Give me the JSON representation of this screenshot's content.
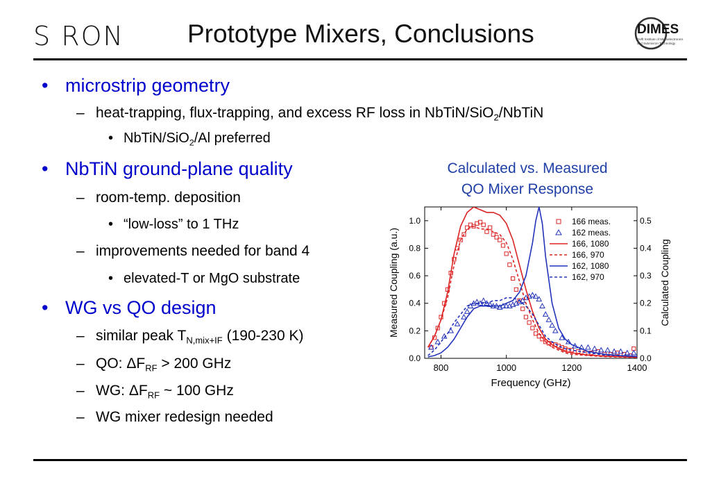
{
  "header": {
    "logo_left_text": "S  RON",
    "title": "Prototype Mixers, Conclusions",
    "logo_right": {
      "mark": "DIMES",
      "sub1": "Delft Institute of Microelectronics",
      "sub2": "and Submicron Technology"
    }
  },
  "bullets": {
    "b1": "microstrip geometry",
    "b1_s1_a": "heat-trapping, flux-trapping, and excess RF loss in NbTiN/SiO",
    "b1_s1_sub": "2",
    "b1_s1_b": "/NbTiN",
    "b1_s1_t1_a": "NbTiN/SiO",
    "b1_s1_t1_sub": "2",
    "b1_s1_t1_b": "/Al preferred",
    "b2": "NbTiN ground-plane quality",
    "b2_s1": "room-temp. deposition",
    "b2_s1_t1": "“low-loss” to 1 THz",
    "b2_s2": "improvements needed for band 4",
    "b2_s2_t1": "elevated-T or MgO substrate",
    "b3": "WG vs QO design",
    "b3_s1_a": "similar peak T",
    "b3_s1_sub": "N,mix+IF",
    "b3_s1_b": " (190-230 K)",
    "b3_s2_a": "QO:  ΔF",
    "b3_s2_sub": "RF",
    "b3_s2_b": " > 200 GHz",
    "b3_s3_a": "WG:  ΔF",
    "b3_s3_sub": "RF",
    "b3_s3_b": " ~ 100 GHz",
    "b3_s4": "WG mixer redesign needed"
  },
  "chart_title_line1": "Calculated vs. Measured",
  "chart_title_line2": "QO Mixer Response",
  "colors": {
    "bullet_blue": "#0000cc",
    "red": "#dd2222",
    "blue": "#2233bb",
    "chart_title": "#1f3fa6"
  },
  "chart_data": {
    "type": "line",
    "xlabel": "Frequency (GHz)",
    "ylabel": "Measured Coupling (a.u.)",
    "y2label": "Calculated Coupling",
    "xlim": [
      750,
      1400
    ],
    "ylim": [
      0,
      1.1
    ],
    "y2lim": [
      0,
      0.55
    ],
    "xticks": [
      800,
      1000,
      1200,
      1400
    ],
    "yticks": [
      0.0,
      0.2,
      0.4,
      0.6,
      0.8,
      1.0
    ],
    "y2ticks": [
      0.0,
      0.1,
      0.2,
      0.3,
      0.4,
      0.5
    ],
    "legend_position": "top-right",
    "series": [
      {
        "name": "166 meas.",
        "kind": "scatter",
        "marker": "square",
        "color": "#dd2222",
        "x": [
          770,
          780,
          790,
          800,
          810,
          820,
          830,
          840,
          850,
          860,
          870,
          880,
          890,
          900,
          910,
          920,
          930,
          940,
          950,
          960,
          970,
          980,
          990,
          1000,
          1010,
          1020,
          1030,
          1040,
          1050,
          1060,
          1070,
          1080,
          1090,
          1100,
          1110,
          1120,
          1130,
          1140,
          1150,
          1160,
          1170,
          1180,
          1190,
          1200,
          1220,
          1240,
          1260,
          1280,
          1300,
          1320,
          1340,
          1360,
          1380,
          1390
        ],
        "y": [
          0.08,
          0.15,
          0.22,
          0.3,
          0.4,
          0.5,
          0.62,
          0.72,
          0.8,
          0.86,
          0.9,
          0.95,
          0.97,
          0.96,
          0.98,
          0.99,
          0.97,
          0.92,
          0.95,
          0.9,
          0.88,
          0.86,
          0.82,
          0.76,
          0.68,
          0.58,
          0.5,
          0.42,
          0.36,
          0.3,
          0.26,
          0.22,
          0.18,
          0.16,
          0.14,
          0.12,
          0.11,
          0.1,
          0.1,
          0.09,
          0.08,
          0.07,
          0.06,
          0.06,
          0.05,
          0.04,
          0.04,
          0.05,
          0.03,
          0.03,
          0.04,
          0.03,
          0.02,
          0.07
        ]
      },
      {
        "name": "162 meas.",
        "kind": "scatter",
        "marker": "triangle",
        "color": "#2233bb",
        "x": [
          770,
          790,
          810,
          830,
          850,
          870,
          880,
          890,
          900,
          910,
          920,
          930,
          940,
          950,
          960,
          970,
          980,
          990,
          1000,
          1010,
          1020,
          1030,
          1040,
          1050,
          1060,
          1070,
          1080,
          1090,
          1100,
          1110,
          1120,
          1130,
          1140,
          1150,
          1170,
          1190,
          1210,
          1230,
          1250,
          1270,
          1290,
          1310,
          1330,
          1350,
          1370,
          1390
        ],
        "y": [
          0.08,
          0.12,
          0.16,
          0.2,
          0.25,
          0.3,
          0.34,
          0.38,
          0.4,
          0.41,
          0.4,
          0.42,
          0.4,
          0.39,
          0.38,
          0.38,
          0.37,
          0.38,
          0.38,
          0.38,
          0.39,
          0.4,
          0.41,
          0.42,
          0.44,
          0.45,
          0.46,
          0.45,
          0.43,
          0.38,
          0.32,
          0.28,
          0.24,
          0.2,
          0.15,
          0.12,
          0.09,
          0.08,
          0.08,
          0.07,
          0.06,
          0.06,
          0.05,
          0.05,
          0.04,
          0.04
        ]
      },
      {
        "name": "166, 1080",
        "kind": "line",
        "style": "solid",
        "color": "#dd2222",
        "axis": "y2",
        "x": [
          760,
          780,
          800,
          820,
          840,
          860,
          880,
          900,
          920,
          940,
          960,
          980,
          1000,
          1020,
          1040,
          1060,
          1080,
          1100,
          1120,
          1140,
          1160,
          1180,
          1200,
          1250,
          1300,
          1400
        ],
        "y": [
          0.04,
          0.08,
          0.14,
          0.24,
          0.38,
          0.48,
          0.53,
          0.55,
          0.54,
          0.53,
          0.53,
          0.52,
          0.49,
          0.43,
          0.34,
          0.25,
          0.17,
          0.11,
          0.07,
          0.05,
          0.035,
          0.025,
          0.02,
          0.012,
          0.008,
          0.004
        ]
      },
      {
        "name": "166, 970",
        "kind": "line",
        "style": "dashed",
        "color": "#dd2222",
        "axis": "y2",
        "x": [
          760,
          780,
          800,
          820,
          840,
          860,
          880,
          900,
          920,
          940,
          960,
          980,
          1000,
          1020,
          1040,
          1060,
          1080,
          1100,
          1120,
          1140,
          1160,
          1180,
          1200,
          1250,
          1300,
          1400
        ],
        "y": [
          0.04,
          0.08,
          0.14,
          0.22,
          0.34,
          0.43,
          0.47,
          0.48,
          0.47,
          0.47,
          0.46,
          0.45,
          0.42,
          0.36,
          0.28,
          0.2,
          0.14,
          0.09,
          0.06,
          0.04,
          0.03,
          0.02,
          0.015,
          0.01,
          0.006,
          0.003
        ]
      },
      {
        "name": "162, 1080",
        "kind": "line",
        "style": "solid",
        "color": "#2233bb",
        "axis": "y2",
        "x": [
          760,
          780,
          800,
          820,
          840,
          860,
          880,
          900,
          920,
          940,
          960,
          980,
          1000,
          1020,
          1040,
          1060,
          1080,
          1090,
          1100,
          1110,
          1120,
          1140,
          1160,
          1180,
          1200,
          1250,
          1300,
          1350,
          1400
        ],
        "y": [
          0.005,
          0.01,
          0.02,
          0.04,
          0.07,
          0.11,
          0.15,
          0.18,
          0.19,
          0.19,
          0.19,
          0.19,
          0.2,
          0.21,
          0.24,
          0.3,
          0.42,
          0.5,
          0.55,
          0.49,
          0.37,
          0.2,
          0.11,
          0.07,
          0.05,
          0.025,
          0.015,
          0.01,
          0.007
        ]
      },
      {
        "name": "162, 970",
        "kind": "line",
        "style": "dashed",
        "color": "#2233bb",
        "axis": "y2",
        "x": [
          760,
          780,
          800,
          820,
          840,
          860,
          880,
          900,
          920,
          940,
          960,
          980,
          1000,
          1020,
          1040,
          1060,
          1080,
          1100,
          1120,
          1140,
          1160,
          1180,
          1200,
          1250,
          1300,
          1400
        ],
        "y": [
          0.01,
          0.03,
          0.06,
          0.09,
          0.13,
          0.16,
          0.19,
          0.2,
          0.2,
          0.2,
          0.21,
          0.21,
          0.22,
          0.22,
          0.21,
          0.19,
          0.16,
          0.12,
          0.08,
          0.06,
          0.045,
          0.035,
          0.03,
          0.02,
          0.012,
          0.006
        ]
      }
    ]
  }
}
